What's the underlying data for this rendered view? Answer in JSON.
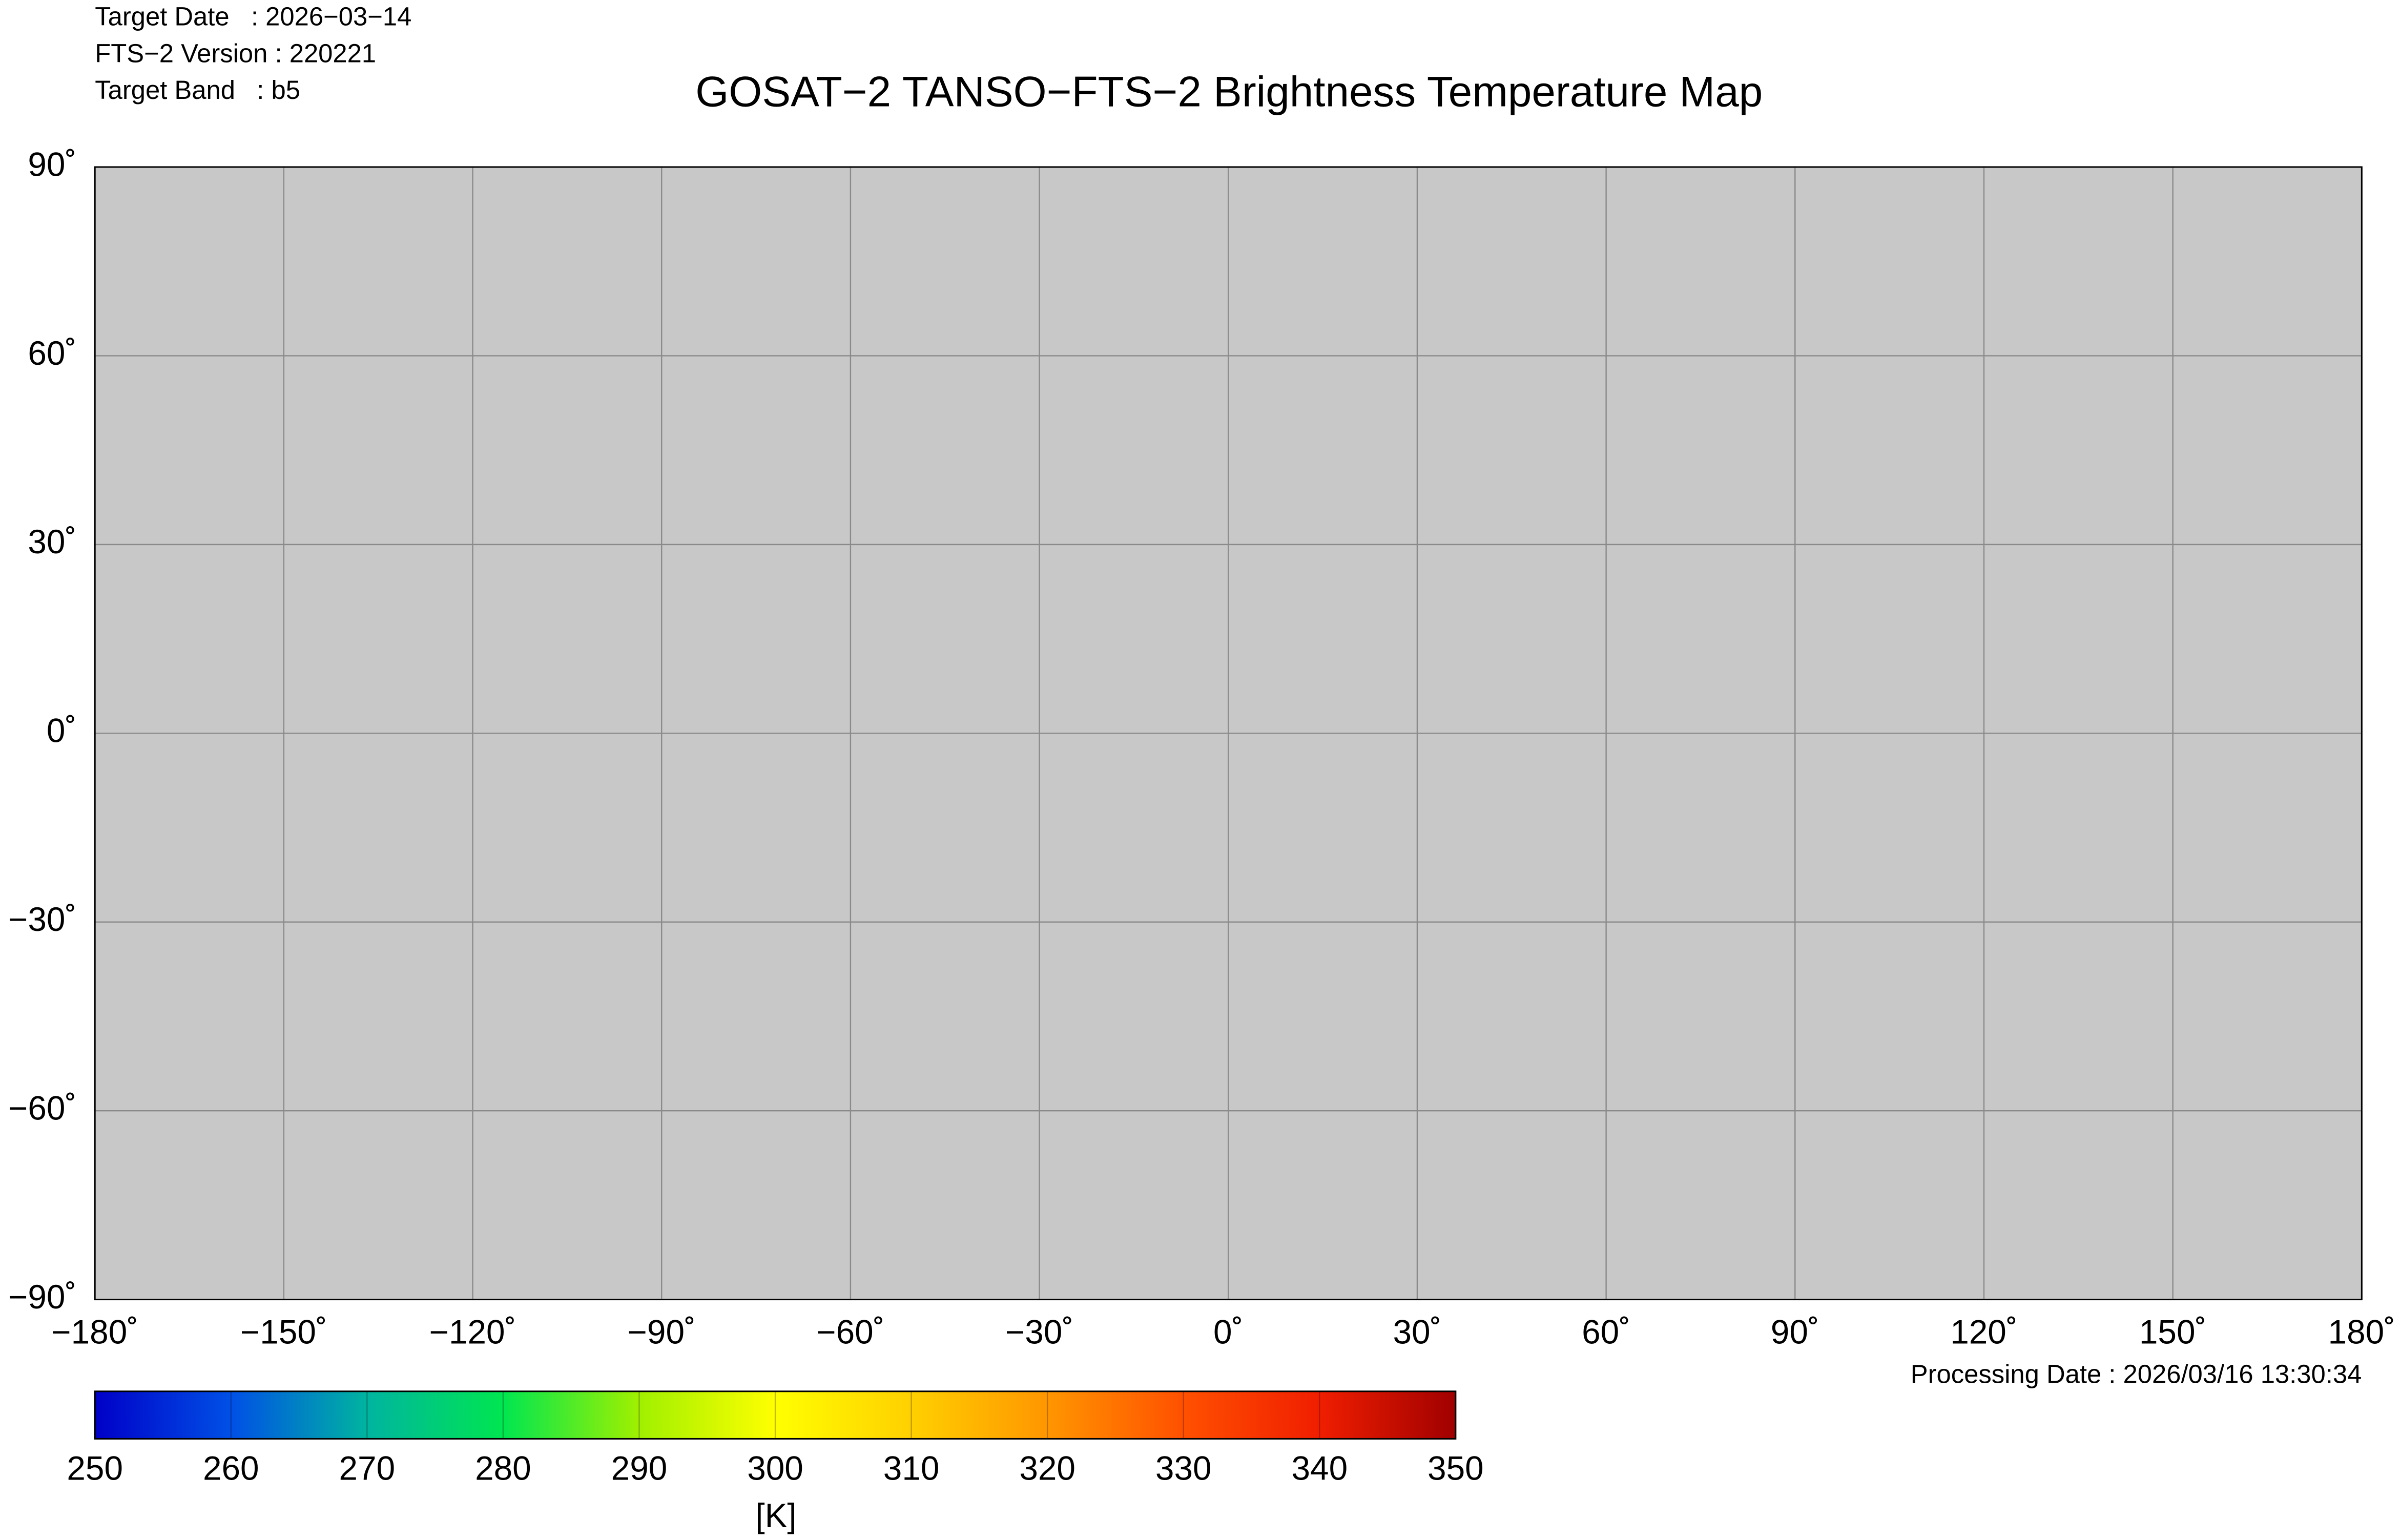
{
  "chart_data": {
    "type": "map",
    "title": "GOSAT−2 TANSO−FTS−2 Brightness Temperature Map",
    "header": [
      "Target Date   : 2026−03−14",
      "FTS−2 Version : 220221",
      "Target Band   : b5"
    ],
    "footer": "Processing Date : 2026/03/16 13:30:34",
    "xlim": [
      -180,
      180
    ],
    "ylim": [
      -90,
      90
    ],
    "xticks": [
      {
        "value": -180,
        "label": "−180˚"
      },
      {
        "value": -150,
        "label": "−150˚"
      },
      {
        "value": -120,
        "label": "−120˚"
      },
      {
        "value": -90,
        "label": "−90˚"
      },
      {
        "value": -60,
        "label": "−60˚"
      },
      {
        "value": -30,
        "label": "−30˚"
      },
      {
        "value": 0,
        "label": "0˚"
      },
      {
        "value": 30,
        "label": "30˚"
      },
      {
        "value": 60,
        "label": "60˚"
      },
      {
        "value": 90,
        "label": "90˚"
      },
      {
        "value": 120,
        "label": "120˚"
      },
      {
        "value": 150,
        "label": "150˚"
      },
      {
        "value": 180,
        "label": "180˚"
      }
    ],
    "yticks": [
      {
        "value": 90,
        "label": "90˚"
      },
      {
        "value": 60,
        "label": "60˚"
      },
      {
        "value": 30,
        "label": "30˚"
      },
      {
        "value": 0,
        "label": "0˚"
      },
      {
        "value": -30,
        "label": "−30˚"
      },
      {
        "value": -60,
        "label": "−60˚"
      },
      {
        "value": -90,
        "label": "−90˚"
      }
    ],
    "grid": true,
    "colorbar": {
      "label": "[K]",
      "lim": [
        250,
        350
      ],
      "ticks": [
        250,
        260,
        270,
        280,
        290,
        300,
        310,
        320,
        330,
        340,
        350
      ],
      "colors": [
        "#0000c8",
        "#0050e6",
        "#00b4a0",
        "#00e650",
        "#a0f000",
        "#ffff00",
        "#ffd000",
        "#ff9600",
        "#ff5000",
        "#f01e00",
        "#a00000"
      ]
    }
  }
}
